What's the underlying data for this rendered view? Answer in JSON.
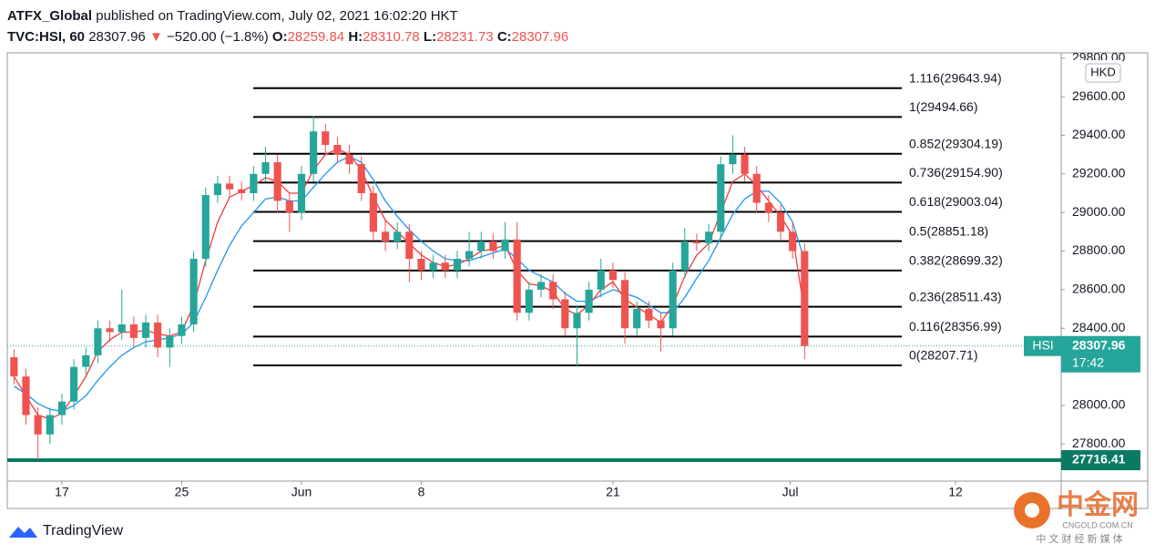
{
  "header": {
    "publisher": "ATFX_Global",
    "published": "published on TradingView.com, July 02, 2021 16:02:20 HKT",
    "symbol": "TVC:HSI, 60",
    "last": "28307.96",
    "arrow": "▼",
    "change": "−520.00 (−1.8%)",
    "ohlc": [
      {
        "key": "O:",
        "value": "28259.84"
      },
      {
        "key": "H:",
        "value": "28310.78"
      },
      {
        "key": "L:",
        "value": "28231.73"
      },
      {
        "key": "C:",
        "value": "28307.96"
      }
    ]
  },
  "branding": {
    "logo": "TradingView",
    "watermark": "中金网",
    "watermark_url": "CNGOLD.COM.CN",
    "watermark_sub": "中 文 财 经 新 媒 体"
  },
  "chart_data": {
    "type": "candlestick",
    "currency": "HKD",
    "up_color": "#26a69a",
    "down_color": "#ef5350",
    "x": [
      -2,
      -1.5,
      -1,
      -0.5,
      0,
      0.5,
      1,
      1.5,
      2,
      2.5,
      3,
      3.5,
      4,
      4.5,
      5,
      5.5,
      6,
      6.5,
      7,
      7.5,
      8,
      8.5,
      9,
      9.5,
      10,
      10.5,
      11,
      11.5,
      12,
      12.5,
      13,
      13.5,
      14,
      14.5,
      15,
      15.5,
      16,
      16.5,
      17,
      17.5,
      18,
      18.5,
      19,
      19.5,
      20,
      20.5,
      21,
      21.5,
      22,
      22.5,
      23,
      23.5,
      24,
      24.5,
      25,
      25.5,
      26,
      26.5,
      27,
      27.5,
      28,
      28.5,
      29,
      29.5,
      30,
      30.5,
      31
    ],
    "open": [
      28250,
      28150,
      27950,
      27850,
      27950,
      28020,
      28200,
      28260,
      28400,
      28380,
      28420,
      28350,
      28430,
      28300,
      28360,
      28420,
      28760,
      29090,
      29150,
      29120,
      29100,
      29200,
      29260,
      29060,
      29000,
      29200,
      29420,
      29350,
      29300,
      29250,
      29100,
      28900,
      28850,
      28900,
      28760,
      28700,
      28740,
      28700,
      28760,
      28800,
      28850,
      28800,
      28860,
      28480,
      28600,
      28640,
      28550,
      28400,
      28480,
      28600,
      28700,
      28650,
      28400,
      28500,
      28440,
      28400,
      28700,
      28850,
      28840,
      28900,
      29250,
      29300,
      29200,
      29050,
      29000,
      28900,
      28800
    ],
    "high": [
      28290,
      28190,
      27990,
      27990,
      28060,
      28240,
      28300,
      28440,
      28440,
      28600,
      28460,
      28470,
      28470,
      28400,
      28460,
      28800,
      29130,
      29190,
      29190,
      29160,
      29240,
      29340,
      29300,
      29100,
      29240,
      29500,
      29460,
      29390,
      29350,
      29290,
      29140,
      28960,
      28950,
      28940,
      28800,
      28780,
      28780,
      28800,
      28900,
      28900,
      28890,
      28950,
      28950,
      28640,
      28680,
      28680,
      28590,
      28520,
      28640,
      28760,
      28740,
      28690,
      28540,
      28540,
      28480,
      28740,
      28920,
      28890,
      28940,
      29290,
      29400,
      29340,
      29240,
      29090,
      29040,
      28950,
      28840
    ],
    "low": [
      28110,
      27900,
      27720,
      27800,
      27900,
      27980,
      28160,
      28220,
      28330,
      28340,
      28300,
      28300,
      28250,
      28200,
      28320,
      28380,
      28720,
      29050,
      29080,
      29060,
      29060,
      29160,
      29000,
      28900,
      28960,
      29160,
      29300,
      29260,
      29200,
      29060,
      28860,
      28800,
      28810,
      28640,
      28650,
      28660,
      28660,
      28660,
      28720,
      28760,
      28760,
      28760,
      28440,
      28440,
      28560,
      28500,
      28360,
      28200,
      28440,
      28560,
      28610,
      28320,
      28360,
      28400,
      28280,
      28360,
      28660,
      28800,
      28800,
      28860,
      29200,
      29160,
      29000,
      28950,
      28860,
      28760,
      28240
    ],
    "close": [
      28150,
      27950,
      27850,
      27950,
      28020,
      28200,
      28260,
      28400,
      28380,
      28420,
      28350,
      28430,
      28300,
      28360,
      28420,
      28760,
      29090,
      29150,
      29120,
      29100,
      29200,
      29260,
      29060,
      29000,
      29200,
      29420,
      29350,
      29300,
      29250,
      29100,
      28900,
      28850,
      28900,
      28760,
      28700,
      28740,
      28700,
      28760,
      28800,
      28850,
      28800,
      28860,
      28480,
      28600,
      28640,
      28550,
      28400,
      28480,
      28600,
      28700,
      28650,
      28400,
      28500,
      28440,
      28400,
      28700,
      28850,
      28840,
      28900,
      29250,
      29300,
      29200,
      29050,
      29000,
      28900,
      28800,
      28307.96
    ],
    "series": [
      {
        "color": "#2196f3",
        "values": [
          28100,
          28060,
          28010,
          27980,
          27970,
          28000,
          28050,
          28130,
          28200,
          28260,
          28300,
          28330,
          28340,
          28350,
          28370,
          28430,
          28560,
          28700,
          28830,
          28930,
          29000,
          29070,
          29080,
          29060,
          29060,
          29130,
          29200,
          29260,
          29290,
          29260,
          29170,
          29060,
          28980,
          28910,
          28850,
          28800,
          28760,
          28750,
          28750,
          28770,
          28790,
          28810,
          28760,
          28700,
          28670,
          28640,
          28580,
          28540,
          28540,
          28570,
          28600,
          28580,
          28560,
          28520,
          28480,
          28480,
          28560,
          28660,
          28750,
          28870,
          28990,
          29070,
          29110,
          29110,
          29050,
          28950,
          28750
        ]
      },
      {
        "color": "#f23b3b",
        "values": [
          28150,
          28050,
          27950,
          27930,
          27960,
          28050,
          28150,
          28280,
          28340,
          28380,
          28380,
          28390,
          28370,
          28360,
          28380,
          28520,
          28750,
          28950,
          29080,
          29110,
          29140,
          29180,
          29160,
          29100,
          29100,
          29220,
          29300,
          29330,
          29300,
          29220,
          29080,
          28960,
          28900,
          28840,
          28780,
          28740,
          28720,
          28730,
          28760,
          28800,
          28810,
          28830,
          28700,
          28630,
          28620,
          28590,
          28500,
          28470,
          28520,
          28600,
          28640,
          28550,
          28510,
          28470,
          28430,
          28520,
          28670,
          28780,
          28840,
          29000,
          29160,
          29200,
          29140,
          29060,
          28980,
          28880,
          28480
        ]
      }
    ],
    "xlim": [
      -2.28,
      41.71
    ],
    "xticks": [
      {
        "value": 0,
        "label": "17"
      },
      {
        "value": 5,
        "label": "25"
      },
      {
        "value": 10,
        "label": "Jun"
      },
      {
        "value": 15,
        "label": "8"
      },
      {
        "value": 23,
        "label": "21"
      },
      {
        "value": 30.4,
        "label": "Jul"
      },
      {
        "value": 37.3,
        "label": "12"
      }
    ],
    "ylim": [
      27608,
      29827
    ],
    "yticks": [
      {
        "value": 27800,
        "label": "27800.00"
      },
      {
        "value": 28000,
        "label": "28000.00"
      },
      {
        "value": 28200,
        "label": "28200.00"
      },
      {
        "value": 28400,
        "label": "28400.00"
      },
      {
        "value": 28600,
        "label": "28600.00"
      },
      {
        "value": 28800,
        "label": "28800.00"
      },
      {
        "value": 29000,
        "label": "29000.00"
      },
      {
        "value": 29200,
        "label": "29200.00"
      },
      {
        "value": 29400,
        "label": "29400.00"
      },
      {
        "value": 29600,
        "label": "29600.00"
      },
      {
        "value": 29800,
        "label": "29800.00"
      }
    ],
    "fib_levels": [
      {
        "value": 29643.94,
        "label": "1.116(29643.94)"
      },
      {
        "value": 29494.66,
        "label": "1(29494.66)"
      },
      {
        "value": 29304.19,
        "label": "0.852(29304.19)"
      },
      {
        "value": 29154.9,
        "label": "0.736(29154.90)"
      },
      {
        "value": 29003.04,
        "label": "0.618(29003.04)"
      },
      {
        "value": 28851.18,
        "label": "0.5(28851.18)"
      },
      {
        "value": 28699.32,
        "label": "0.382(28699.32)"
      },
      {
        "value": 28511.43,
        "label": "0.236(28511.43)"
      },
      {
        "value": 28356.99,
        "label": "0.116(28356.99)"
      },
      {
        "value": 28207.71,
        "label": "0(28207.71)"
      }
    ],
    "price_line": {
      "value": 27716.41,
      "label": "27716.41",
      "color": "#0b7a63"
    },
    "last_price": {
      "symbol": "HSI",
      "value": 28307.96,
      "label": "28307.96",
      "countdown": "17:42",
      "color": "#26a69a"
    }
  }
}
